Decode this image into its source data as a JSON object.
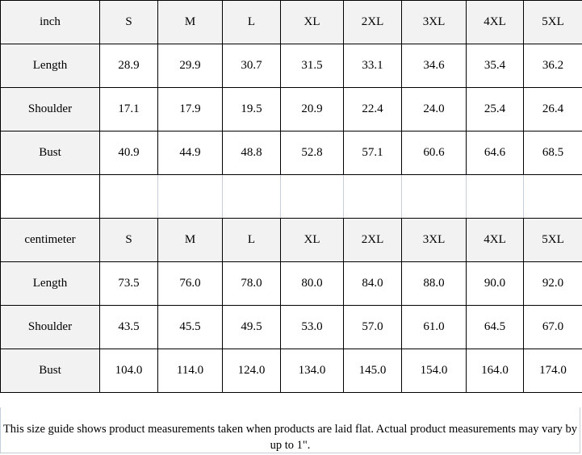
{
  "sizes": [
    "S",
    "M",
    "L",
    "XL",
    "2XL",
    "3XL",
    "4XL",
    "5XL"
  ],
  "inch": {
    "unit_label": "inch",
    "rows": [
      {
        "label": "Length",
        "values": [
          "28.9",
          "29.9",
          "30.7",
          "31.5",
          "33.1",
          "34.6",
          "35.4",
          "36.2"
        ]
      },
      {
        "label": "Shoulder",
        "values": [
          "17.1",
          "17.9",
          "19.5",
          "20.9",
          "22.4",
          "24.0",
          "25.4",
          "26.4"
        ]
      },
      {
        "label": "Bust",
        "values": [
          "40.9",
          "44.9",
          "48.8",
          "52.8",
          "57.1",
          "60.6",
          "64.6",
          "68.5"
        ]
      }
    ]
  },
  "centimeter": {
    "unit_label": "centimeter",
    "rows": [
      {
        "label": "Length",
        "values": [
          "73.5",
          "76.0",
          "78.0",
          "80.0",
          "84.0",
          "88.0",
          "90.0",
          "92.0"
        ]
      },
      {
        "label": "Shoulder",
        "values": [
          "43.5",
          "45.5",
          "49.5",
          "53.0",
          "57.0",
          "61.0",
          "64.5",
          "67.0"
        ]
      },
      {
        "label": "Bust",
        "values": [
          "104.0",
          "114.0",
          "124.0",
          "134.0",
          "145.0",
          "154.0",
          "164.0",
          "174.0"
        ]
      }
    ]
  },
  "note": "This size guide shows product measurements taken when products are laid flat. Actual product measurements may vary by up to 1\".",
  "colors": {
    "header_bg": "#f2f2f2",
    "border": "#000000",
    "light_border": "#c5cedd"
  }
}
